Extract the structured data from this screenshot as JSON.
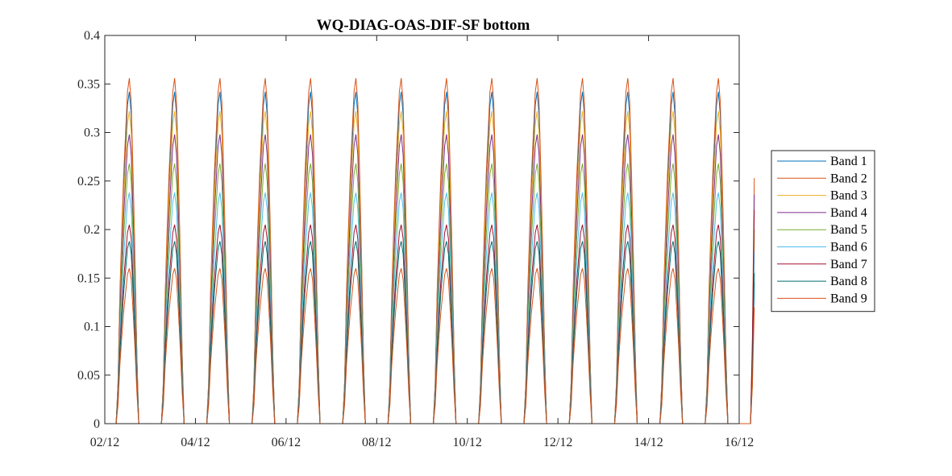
{
  "chart_data": {
    "type": "line",
    "title": "WQ-DIAG-OAS-DIF-SF bottom",
    "xlabel": "",
    "ylabel": "",
    "xlim": [
      "2012-12-02",
      "2012-12-16"
    ],
    "ylim": [
      0,
      0.4
    ],
    "x_ticks": [
      "02/12",
      "04/12",
      "06/12",
      "08/12",
      "10/12",
      "12/12",
      "14/12",
      "16/12"
    ],
    "y_ticks": [
      "0",
      "0.05",
      "0.1",
      "0.15",
      "0.2",
      "0.25",
      "0.3",
      "0.35",
      "0.4"
    ],
    "grid": false,
    "legend_position": "outside-right",
    "days": [
      "2012-12-02",
      "2012-12-03",
      "2012-12-04",
      "2012-12-05",
      "2012-12-06",
      "2012-12-07",
      "2012-12-08",
      "2012-12-09",
      "2012-12-10",
      "2012-12-11",
      "2012-12-12",
      "2012-12-13",
      "2012-12-14",
      "2012-12-15"
    ],
    "daylight_hours": [
      "06:00",
      "07:00",
      "08:00",
      "09:00",
      "10:00",
      "11:00",
      "12:00",
      "13:00",
      "14:00",
      "15:00",
      "16:00",
      "17:00",
      "18:00"
    ],
    "last_day_hours": [
      "06:00",
      "07:00",
      "08:00"
    ],
    "series": [
      {
        "name": "Band 1",
        "color": "#0072BD",
        "peak": 0.342,
        "last_day": [
          0,
          0.05,
          0.145
        ]
      },
      {
        "name": "Band 2",
        "color": "#D95319",
        "peak": 0.356,
        "last_day": [
          0,
          0.09,
          0.253
        ]
      },
      {
        "name": "Band 3",
        "color": "#EDB120",
        "peak": 0.322,
        "last_day": [
          0,
          0.04,
          0.19
        ]
      },
      {
        "name": "Band 4",
        "color": "#7E2F8E",
        "peak": 0.298,
        "last_day": [
          0,
          0.07,
          0.236
        ]
      },
      {
        "name": "Band 5",
        "color": "#77AC30",
        "peak": 0.268,
        "last_day": [
          0,
          0.06,
          0.2
        ]
      },
      {
        "name": "Band 6",
        "color": "#4DBEEE",
        "peak": 0.238,
        "last_day": [
          0,
          0.05,
          0.177
        ]
      },
      {
        "name": "Band 7",
        "color": "#A2142F",
        "peak": 0.205,
        "last_day": [
          0,
          0.08,
          0.22
        ]
      },
      {
        "name": "Band 8",
        "color": "#006E6E",
        "peak": 0.188,
        "last_day": [
          0,
          0.05,
          0.155
        ]
      },
      {
        "name": "Band 9",
        "color": "#D95319",
        "peak": 0.16,
        "last_day": [
          0,
          0.04,
          0.12
        ]
      }
    ],
    "shape": [
      0,
      0.12,
      0.38,
      0.56,
      0.72,
      0.84,
      0.96,
      1.0,
      0.93,
      0.72,
      0.48,
      0.2,
      0
    ]
  }
}
